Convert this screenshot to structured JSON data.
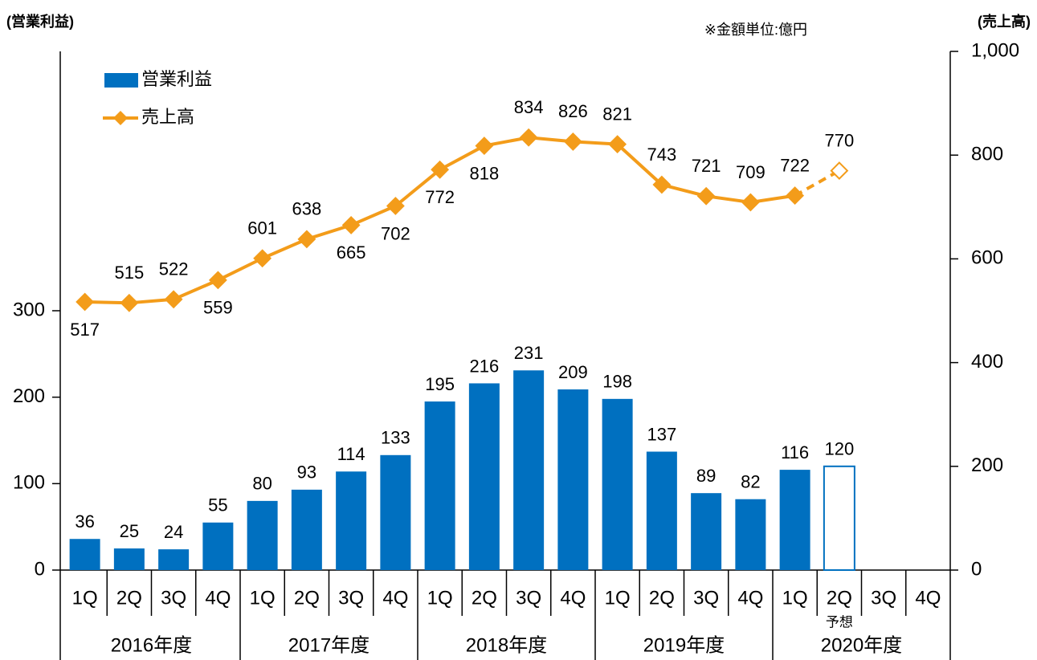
{
  "chart_data": {
    "type": "bar-line",
    "y_label": "(営業利益)",
    "y2_label": "(売上高)",
    "note": "※金額単位:億円",
    "categories": [
      "1Q",
      "2Q",
      "3Q",
      "4Q",
      "1Q",
      "2Q",
      "3Q",
      "4Q",
      "1Q",
      "2Q",
      "3Q",
      "4Q",
      "1Q",
      "2Q",
      "3Q",
      "4Q",
      "1Q",
      "2Q",
      "3Q",
      "4Q"
    ],
    "category_notes": [
      null,
      null,
      null,
      null,
      null,
      null,
      null,
      null,
      null,
      null,
      null,
      null,
      null,
      null,
      null,
      null,
      null,
      "予想",
      null,
      null
    ],
    "groups": [
      "2016年度",
      "2017年度",
      "2018年度",
      "2019年度",
      "2020年度"
    ],
    "series": [
      {
        "name": "営業利益",
        "type": "bar",
        "color": "#0070c0",
        "values": [
          36,
          25,
          24,
          55,
          80,
          93,
          114,
          133,
          195,
          216,
          231,
          209,
          198,
          137,
          89,
          82,
          116,
          120,
          null,
          null
        ]
      },
      {
        "name": "売上高",
        "type": "line",
        "axis": "y2",
        "color": "#f39c1a",
        "values": [
          517,
          515,
          522,
          559,
          601,
          638,
          665,
          702,
          772,
          818,
          834,
          826,
          821,
          743,
          721,
          709,
          722,
          770,
          null,
          null
        ]
      }
    ],
    "ylim": [
      0,
      600
    ],
    "yticks": [
      0,
      100,
      200,
      300
    ],
    "y2lim": [
      0,
      1000
    ],
    "y2ticks": [
      0,
      200,
      400,
      600,
      800,
      {
        "value": 1000,
        "label": "1,000"
      }
    ],
    "legend": "upper left"
  }
}
